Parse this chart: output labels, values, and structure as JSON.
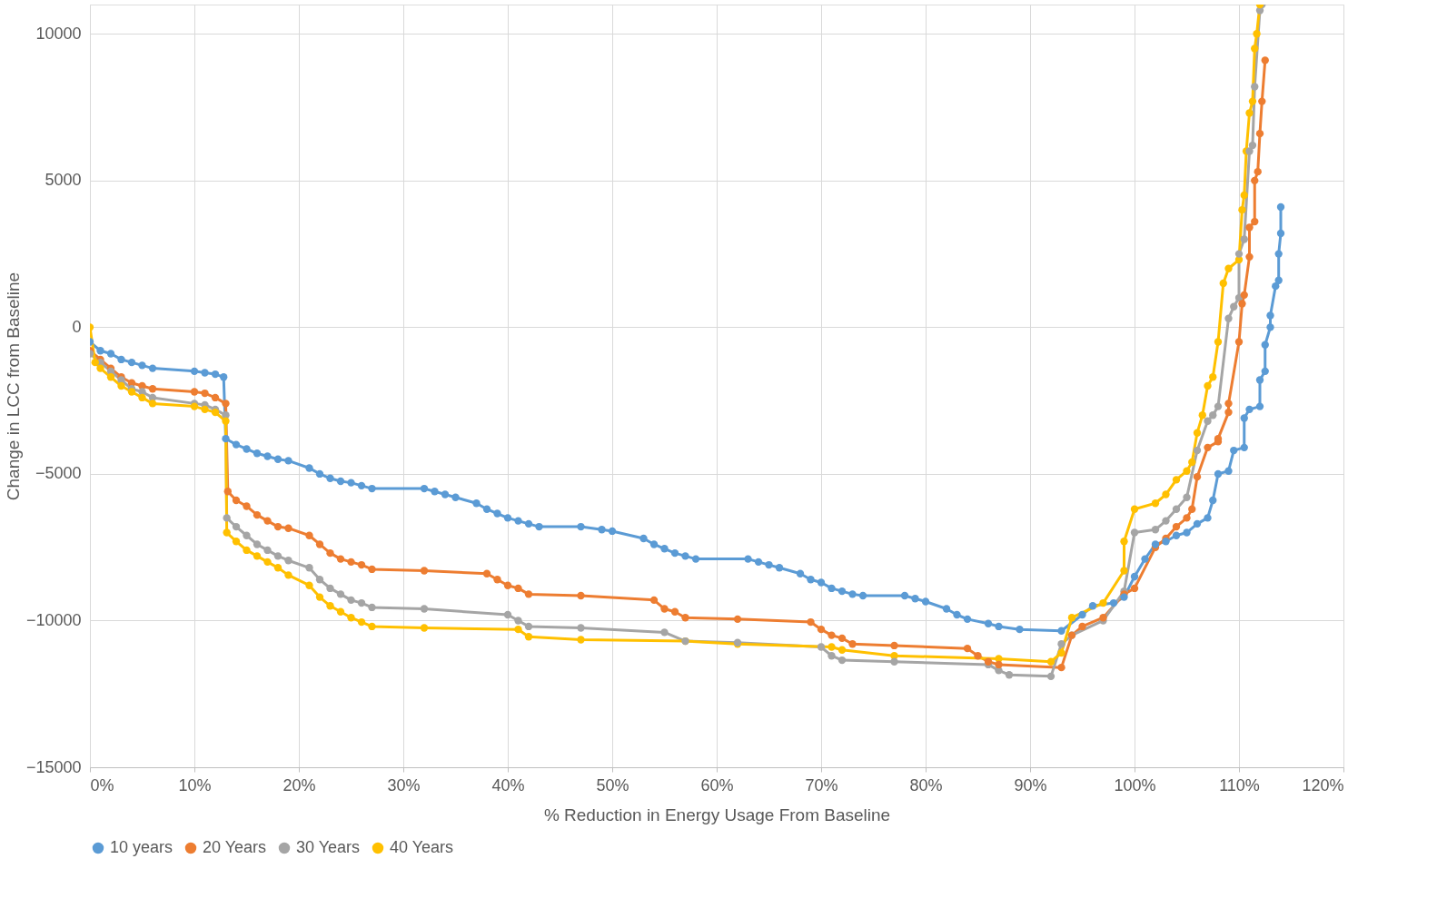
{
  "chart_data": {
    "type": "line",
    "xlabel": "% Reduction in Energy Usage From Baseline",
    "ylabel": "Change in LCC from Baseline",
    "xlim": [
      0,
      120
    ],
    "ylim": [
      -15000,
      11000
    ],
    "xticks": [
      {
        "value": 0,
        "label": "0%"
      },
      {
        "value": 10,
        "label": "10%"
      },
      {
        "value": 20,
        "label": "20%"
      },
      {
        "value": 30,
        "label": "30%"
      },
      {
        "value": 40,
        "label": "40%"
      },
      {
        "value": 50,
        "label": "50%"
      },
      {
        "value": 60,
        "label": "60%"
      },
      {
        "value": 70,
        "label": "70%"
      },
      {
        "value": 80,
        "label": "80%"
      },
      {
        "value": 90,
        "label": "90%"
      },
      {
        "value": 100,
        "label": "100%"
      },
      {
        "value": 110,
        "label": "110%"
      },
      {
        "value": 120,
        "label": "120%"
      }
    ],
    "yticks": [
      -15000,
      -10000,
      -5000,
      0,
      5000,
      10000
    ],
    "grid": true,
    "legend": "bottom",
    "marker": "circle",
    "line_style": "solid",
    "series": [
      {
        "name": "10 years",
        "color": "#5b9bd5",
        "x": [
          0,
          1,
          2,
          3,
          4,
          5,
          6,
          10,
          11,
          12,
          12.8,
          13,
          14,
          15,
          16,
          17,
          18,
          19,
          21,
          22,
          23,
          24,
          25,
          26,
          27,
          32,
          33,
          34,
          35,
          37,
          38,
          39,
          40,
          41,
          42,
          43,
          47,
          49,
          50,
          53,
          54,
          55,
          56,
          57,
          58,
          63,
          64,
          65,
          66,
          68,
          69,
          70,
          71,
          72,
          73,
          74,
          78,
          79,
          80,
          82,
          83,
          84,
          86,
          87,
          89,
          93,
          95,
          96,
          98,
          99,
          100,
          101,
          102,
          103,
          104,
          105,
          106,
          107,
          107.5,
          108,
          109,
          109.5,
          110.5,
          110.5,
          111,
          112,
          112,
          112.5,
          112.5,
          113,
          113,
          113.5,
          113.8,
          113.8,
          114,
          114
        ],
        "values": [
          -500,
          -800,
          -900,
          -1100,
          -1200,
          -1300,
          -1400,
          -1500,
          -1550,
          -1600,
          -1700,
          -3800,
          -4000,
          -4150,
          -4300,
          -4400,
          -4500,
          -4550,
          -4800,
          -5000,
          -5150,
          -5250,
          -5300,
          -5400,
          -5500,
          -5500,
          -5600,
          -5700,
          -5800,
          -6000,
          -6200,
          -6350,
          -6500,
          -6600,
          -6700,
          -6800,
          -6800,
          -6900,
          -6950,
          -7200,
          -7400,
          -7550,
          -7700,
          -7800,
          -7900,
          -7900,
          -8000,
          -8100,
          -8200,
          -8400,
          -8600,
          -8700,
          -8900,
          -9000,
          -9100,
          -9150,
          -9150,
          -9250,
          -9350,
          -9600,
          -9800,
          -9950,
          -10100,
          -10200,
          -10300,
          -10350,
          -9800,
          -9500,
          -9400,
          -9200,
          -8500,
          -7900,
          -7400,
          -7300,
          -7100,
          -7000,
          -6700,
          -6500,
          -5900,
          -5000,
          -4900,
          -4200,
          -4100,
          -3100,
          -2800,
          -2700,
          -1800,
          -1500,
          -600,
          0,
          400,
          1400,
          1600,
          2500,
          3200,
          4100
        ]
      },
      {
        "name": "20 Years",
        "color": "#ed7d31",
        "x": [
          0,
          1,
          2,
          3,
          4,
          5,
          6,
          10,
          11,
          12,
          13,
          13.2,
          14,
          15,
          16,
          17,
          18,
          19,
          21,
          22,
          23,
          24,
          25,
          26,
          27,
          32,
          38,
          39,
          40,
          41,
          42,
          47,
          54,
          55,
          56,
          57,
          62,
          69,
          70,
          71,
          72,
          73,
          77,
          84,
          85,
          86,
          87,
          93,
          94,
          95,
          97,
          99,
          100,
          102,
          103,
          104,
          105,
          105.5,
          106,
          107,
          108,
          108,
          109,
          109,
          110,
          110.3,
          110.5,
          111,
          111,
          111.5,
          111.5,
          111.8,
          112,
          112.2,
          112.5
        ],
        "values": [
          -800,
          -1100,
          -1400,
          -1700,
          -1900,
          -2000,
          -2100,
          -2200,
          -2250,
          -2400,
          -2600,
          -5600,
          -5900,
          -6100,
          -6400,
          -6600,
          -6800,
          -6850,
          -7100,
          -7400,
          -7700,
          -7900,
          -8000,
          -8100,
          -8250,
          -8300,
          -8400,
          -8600,
          -8800,
          -8900,
          -9100,
          -9150,
          -9300,
          -9600,
          -9700,
          -9900,
          -9950,
          -10050,
          -10300,
          -10500,
          -10600,
          -10800,
          -10850,
          -10950,
          -11200,
          -11400,
          -11500,
          -11600,
          -10500,
          -10200,
          -9900,
          -9100,
          -8900,
          -7500,
          -7200,
          -6800,
          -6500,
          -6200,
          -5100,
          -4100,
          -3900,
          -3800,
          -2900,
          -2600,
          -500,
          800,
          1100,
          2400,
          3400,
          3600,
          5000,
          5300,
          6600,
          7700,
          9100
        ]
      },
      {
        "name": "30 Years",
        "color": "#a5a5a5",
        "x": [
          0,
          1,
          2,
          3,
          4,
          5,
          6,
          10,
          11,
          12,
          13,
          13.1,
          14,
          15,
          16,
          17,
          18,
          19,
          21,
          22,
          23,
          24,
          25,
          26,
          27,
          32,
          40,
          41,
          42,
          47,
          55,
          57,
          62,
          70,
          71,
          72,
          77,
          86,
          87,
          88,
          92,
          93,
          94,
          97,
          99,
          100,
          102,
          103,
          104,
          105,
          106,
          107,
          107.5,
          108,
          109,
          109.5,
          110,
          110,
          110.5,
          111,
          111.3,
          111.5,
          112,
          112.2
        ],
        "values": [
          -900,
          -1200,
          -1500,
          -1800,
          -2100,
          -2200,
          -2400,
          -2600,
          -2650,
          -2800,
          -3000,
          -6500,
          -6800,
          -7100,
          -7400,
          -7600,
          -7800,
          -7950,
          -8200,
          -8600,
          -8900,
          -9100,
          -9300,
          -9400,
          -9550,
          -9600,
          -9800,
          -10000,
          -10200,
          -10250,
          -10400,
          -10700,
          -10750,
          -10900,
          -11200,
          -11350,
          -11400,
          -11500,
          -11700,
          -11850,
          -11900,
          -10800,
          -10500,
          -10000,
          -9000,
          -7000,
          -6900,
          -6600,
          -6200,
          -5800,
          -4200,
          -3200,
          -3000,
          -2700,
          300,
          700,
          1000,
          2500,
          3000,
          6000,
          6200,
          8200,
          10800,
          11000
        ]
      },
      {
        "name": "40 Years",
        "color": "#ffc000",
        "x": [
          0,
          0.5,
          1,
          2,
          3,
          4,
          5,
          6,
          10,
          11,
          12,
          13,
          13.1,
          14,
          15,
          16,
          17,
          18,
          19,
          21,
          22,
          23,
          24,
          25,
          26,
          27,
          32,
          41,
          42,
          47,
          57,
          62,
          71,
          72,
          77,
          87,
          92,
          93,
          94,
          97,
          99,
          99,
          100,
          102,
          103,
          104,
          105,
          105.5,
          106,
          106.5,
          107,
          107.5,
          108,
          108.5,
          109,
          110,
          110.3,
          110.5,
          110.7,
          111,
          111.3,
          111.5,
          111.7,
          112
        ],
        "values": [
          0,
          -1200,
          -1400,
          -1700,
          -2000,
          -2200,
          -2400,
          -2600,
          -2700,
          -2800,
          -2900,
          -3200,
          -7000,
          -7300,
          -7600,
          -7800,
          -8000,
          -8200,
          -8450,
          -8800,
          -9200,
          -9500,
          -9700,
          -9900,
          -10050,
          -10200,
          -10250,
          -10300,
          -10550,
          -10650,
          -10700,
          -10800,
          -10900,
          -11000,
          -11200,
          -11300,
          -11400,
          -11100,
          -9900,
          -9400,
          -8300,
          -7300,
          -6200,
          -6000,
          -5700,
          -5200,
          -4900,
          -4600,
          -3600,
          -3000,
          -2000,
          -1700,
          -500,
          1500,
          2000,
          2300,
          4000,
          4500,
          6000,
          7300,
          7700,
          9500,
          10000,
          11000
        ]
      }
    ]
  }
}
